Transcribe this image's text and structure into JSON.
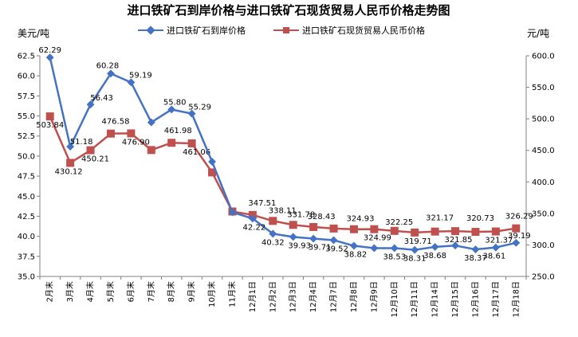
{
  "chart_data": {
    "type": "line",
    "title": "进口铁矿石到岸价格与进口铁矿石现货贸易人民币价格走势图",
    "y_left_unit": "美元/吨",
    "y_right_unit": "元/吨",
    "legend_position": "top",
    "grid": false,
    "categories": [
      "2月末",
      "3月末",
      "4月末",
      "5月末",
      "6月末",
      "7月末",
      "8月末",
      "9月末",
      "10月末",
      "11月末",
      "12月1日",
      "12月2日",
      "12月3日",
      "12月4日",
      "12月7日",
      "12月8日",
      "12月9日",
      "12月10日",
      "12月11日",
      "12月14日",
      "12月15日",
      "12月16日",
      "12月17日",
      "12月18日"
    ],
    "y_left_ticks": [
      "35.0",
      "37.5",
      "40.0",
      "42.5",
      "45.0",
      "47.5",
      "50.0",
      "52.5",
      "55.0",
      "57.5",
      "60.0",
      "62.5"
    ],
    "y_right_ticks": [
      "250.0",
      "300.0",
      "350.0",
      "400.0",
      "450.0",
      "500.0",
      "550.0",
      "600.0"
    ],
    "y_left_range": [
      35.0,
      62.5
    ],
    "y_right_range": [
      250.0,
      600.0
    ],
    "series": [
      {
        "name": "进口铁矿石到岸价格",
        "axis": "left",
        "color": "#4472C4",
        "marker": "diamond",
        "values": [
          62.29,
          51.18,
          56.43,
          60.28,
          59.19,
          54.2,
          55.8,
          55.29,
          49.3,
          43.0,
          42.22,
          40.32,
          39.93,
          39.71,
          39.52,
          38.82,
          38.53,
          38.53,
          38.31,
          38.68,
          38.85,
          38.37,
          38.61,
          39.19
        ],
        "labels": [
          "62.29",
          "51.18",
          "56.43",
          "60.28",
          "59.19",
          "",
          "55.80",
          "55.29",
          "",
          "",
          "42.22",
          "40.32",
          "39.93",
          "39.71",
          "39.52",
          "38.82",
          "",
          "38.53",
          "38.31",
          "38.68",
          "",
          "38.37",
          "38.61",
          "39.19"
        ]
      },
      {
        "name": "进口铁矿石现货贸易人民币价格",
        "axis": "right",
        "color": "#C0504D",
        "marker": "square",
        "values": [
          503.84,
          430.12,
          450.21,
          476.58,
          476.9,
          450.5,
          461.98,
          461.06,
          415.0,
          353.0,
          347.51,
          338.11,
          331.78,
          328.43,
          326.0,
          324.93,
          324.99,
          322.25,
          319.71,
          321.17,
          321.85,
          320.73,
          321.37,
          326.29
        ],
        "labels": [
          "503.84",
          "430.12",
          "450.21",
          "476.58",
          "476.90",
          "",
          "461.98",
          "461.06",
          "",
          "",
          "347.51",
          "338.11",
          "331.78",
          "328.43",
          "",
          "324.93",
          "324.99",
          "322.25",
          "319.71",
          "321.17",
          "321.85",
          "320.73",
          "321.37",
          "326.29"
        ]
      }
    ]
  }
}
